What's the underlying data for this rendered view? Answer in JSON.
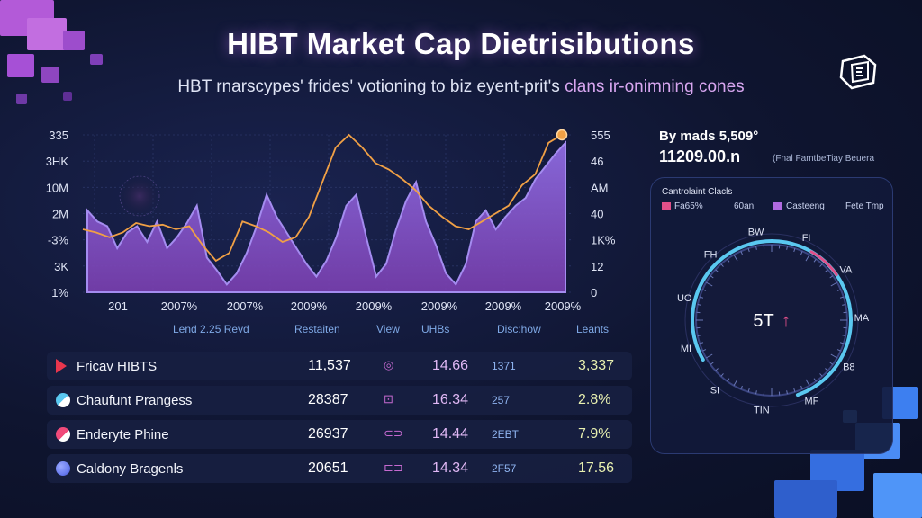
{
  "title": "HIBT Market Cap Dietrisibutions",
  "subtitle_a": "HBT rnarscypes' frides' votioning to biz eyent-prit's ",
  "subtitle_b": "clans ir-onimning cones",
  "chart_data": {
    "type": "area",
    "left_ticks": [
      "335",
      "3HK",
      "10M",
      "2M",
      "-3%",
      "3K",
      "1%"
    ],
    "right_ticks": [
      "555",
      "46",
      "AM",
      "40",
      "1K%",
      "12",
      "0"
    ],
    "x_ticks": [
      "201",
      "2007%",
      "2007%",
      "2009%",
      "2009%",
      "2009%",
      "2009%",
      "2009%"
    ],
    "area_series": [
      0.52,
      0.45,
      0.42,
      0.28,
      0.38,
      0.42,
      0.32,
      0.45,
      0.28,
      0.35,
      0.44,
      0.55,
      0.22,
      0.14,
      0.05,
      0.12,
      0.25,
      0.42,
      0.62,
      0.48,
      0.38,
      0.28,
      0.18,
      0.1,
      0.2,
      0.35,
      0.55,
      0.62,
      0.35,
      0.1,
      0.18,
      0.4,
      0.58,
      0.7,
      0.45,
      0.3,
      0.12,
      0.05,
      0.18,
      0.45,
      0.52,
      0.4,
      0.48,
      0.55,
      0.6,
      0.72,
      0.8,
      0.88,
      0.95
    ],
    "line_series": [
      0.4,
      0.38,
      0.35,
      0.38,
      0.44,
      0.42,
      0.43,
      0.4,
      0.42,
      0.3,
      0.2,
      0.25,
      0.45,
      0.42,
      0.38,
      0.32,
      0.35,
      0.48,
      0.7,
      0.92,
      1.0,
      0.92,
      0.82,
      0.78,
      0.72,
      0.65,
      0.55,
      0.48,
      0.42,
      0.4,
      0.45,
      0.5,
      0.55,
      0.68,
      0.75,
      0.95,
      1.0
    ],
    "area_color": "#8d6be0",
    "line_color": "#f0a045"
  },
  "table": {
    "headers": [
      "Lend 2.25 Revd",
      "Restaiten",
      "View",
      "UHBs",
      "Disc:how",
      "Leants"
    ],
    "rows": [
      {
        "name": "Fricav HIBTS",
        "v1": "11,537",
        "v2": "14.66",
        "v3": "1371",
        "v4": "3,337",
        "color": "#e8364d"
      },
      {
        "name": "Chaufunt Prangess",
        "v1": "28387",
        "v2": "16.34",
        "v3": "257",
        "v4": "2.8%",
        "color": "#5ac8f0"
      },
      {
        "name": "Enderyte Phine",
        "v1": "26937",
        "v2": "14.44",
        "v3": "2EBT",
        "v4": "7.9%",
        "color": "#f04a7a"
      },
      {
        "name": "Caldony Bragenls",
        "v1": "20651",
        "v2": "14.34",
        "v3": "2F57",
        "v4": "17.56",
        "color": "#6a7df0"
      }
    ]
  },
  "side": {
    "header": "By mads 5,509°",
    "big": "11209.00.n",
    "note": "(Fnal FamtbeTiay Beuera"
  },
  "panel": {
    "title": "Cantrolaint Clacls",
    "legend": [
      {
        "label": "Fa65%",
        "color": "#e0508a"
      },
      {
        "label": "60an",
        "color": "#5b6fe0"
      },
      {
        "label": "Casteeng",
        "color": "#b06ae0"
      },
      {
        "label": "Fete Tmp",
        "color": "#3a4a80"
      }
    ],
    "gauge_center": "5T",
    "gauge_labels": [
      "BW",
      "FI",
      "VA",
      "MA",
      "B8",
      "MF",
      "TIN",
      "SI",
      "MI",
      "UO",
      "FH"
    ],
    "gauge_level": 0.78
  }
}
